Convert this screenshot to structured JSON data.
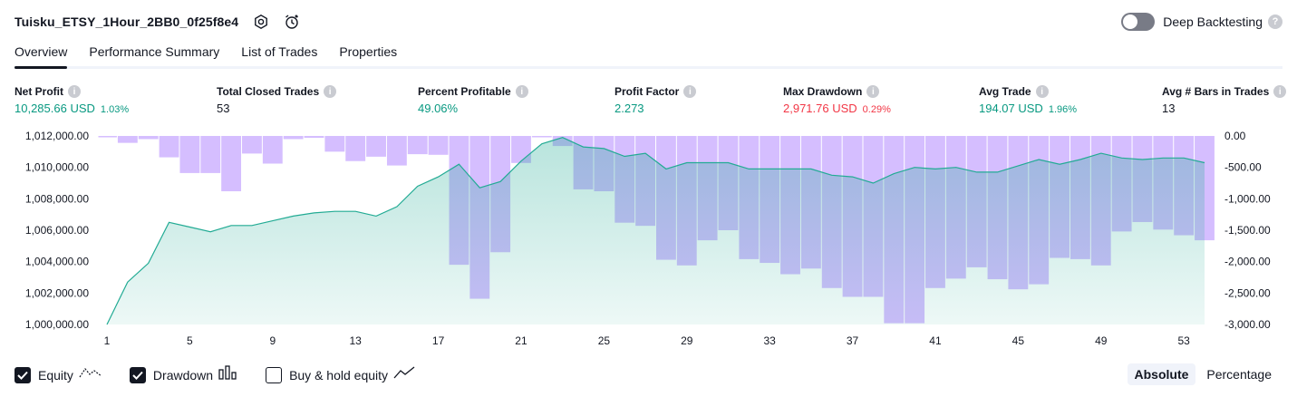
{
  "header": {
    "title": "Tuisku_ETSY_1Hour_2BB0_0f25f8e4",
    "settings_icon": "settings-icon",
    "alert_icon": "alarm-clock-icon",
    "deep_backtesting_label": "Deep Backtesting",
    "deep_backtesting_enabled": false
  },
  "tabs": [
    {
      "label": "Overview",
      "active": true
    },
    {
      "label": "Performance Summary",
      "active": false
    },
    {
      "label": "List of Trades",
      "active": false
    },
    {
      "label": "Properties",
      "active": false
    }
  ],
  "metrics": [
    {
      "label": "Net Profit",
      "value": "10,285.66 USD",
      "pct": "1.03%",
      "tone": "pos"
    },
    {
      "label": "Total Closed Trades",
      "value": "53",
      "pct": "",
      "tone": "neutral"
    },
    {
      "label": "Percent Profitable",
      "value": "49.06%",
      "pct": "",
      "tone": "pos"
    },
    {
      "label": "Profit Factor",
      "value": "2.273",
      "pct": "",
      "tone": "pos"
    },
    {
      "label": "Max Drawdown",
      "value": "2,971.76 USD",
      "pct": "0.29%",
      "tone": "neg"
    },
    {
      "label": "Avg Trade",
      "value": "194.07 USD",
      "pct": "1.96%",
      "tone": "pos"
    },
    {
      "label": "Avg # Bars in Trades",
      "value": "13",
      "pct": "",
      "tone": "neutral"
    }
  ],
  "colors": {
    "equity_line": "#22ab94",
    "equity_fill": "#22ab94",
    "drawdown_bar": "#b388ff",
    "axis_text": "#131722",
    "positive": "#089981",
    "negative": "#f23645"
  },
  "chart_data": {
    "type": "area",
    "x": [
      1,
      2,
      3,
      4,
      5,
      6,
      7,
      8,
      9,
      10,
      11,
      12,
      13,
      14,
      15,
      16,
      17,
      18,
      19,
      20,
      21,
      22,
      23,
      24,
      25,
      26,
      27,
      28,
      29,
      30,
      31,
      32,
      33,
      34,
      35,
      36,
      37,
      38,
      39,
      40,
      41,
      42,
      43,
      44,
      45,
      46,
      47,
      48,
      49,
      50,
      51,
      52,
      53,
      54
    ],
    "x_ticks": [
      1,
      5,
      9,
      13,
      17,
      21,
      25,
      29,
      33,
      37,
      41,
      45,
      49,
      53
    ],
    "series": [
      {
        "name": "Equity",
        "axis": "left",
        "values": [
          1000000,
          1002700,
          1003900,
          1006500,
          1006200,
          1005900,
          1006300,
          1006300,
          1006600,
          1006900,
          1007100,
          1007200,
          1007200,
          1006900,
          1007500,
          1008800,
          1009400,
          1010200,
          1008700,
          1009100,
          1010400,
          1011500,
          1011900,
          1011300,
          1011200,
          1010700,
          1010900,
          1009900,
          1010300,
          1010300,
          1010300,
          1009900,
          1009900,
          1009900,
          1009900,
          1009500,
          1009400,
          1009000,
          1009600,
          1010000,
          1009900,
          1010000,
          1009700,
          1009700,
          1010100,
          1010500,
          1010200,
          1010500,
          1010900,
          1010600,
          1010500,
          1010600,
          1010600,
          1010300
        ]
      },
      {
        "name": "Drawdown",
        "axis": "right",
        "values": [
          0,
          -110,
          -50,
          -340,
          -590,
          -590,
          -880,
          -280,
          -440,
          -50,
          -30,
          -250,
          -400,
          -330,
          -470,
          -290,
          -300,
          -2050,
          -2590,
          -1850,
          -430,
          0,
          -160,
          -850,
          -880,
          -1380,
          -1430,
          -1970,
          -2060,
          -1660,
          -1500,
          -1960,
          -2020,
          -2200,
          -2110,
          -2420,
          -2560,
          -2560,
          -2980,
          -2980,
          -2420,
          -2270,
          -2090,
          -2280,
          -2440,
          -2360,
          -1940,
          -1960,
          -2060,
          -1520,
          -1370,
          -1490,
          -1580,
          -1660
        ]
      }
    ],
    "y_left_ticks": [
      1000000,
      1002000,
      1004000,
      1006000,
      1008000,
      1010000,
      1012000
    ],
    "y_left_tick_labels": [
      "1,000,000.00",
      "1,002,000.00",
      "1,004,000.00",
      "1,006,000.00",
      "1,008,000.00",
      "1,010,000.00",
      "1,012,000.00"
    ],
    "y_left_range": [
      1000000,
      1012000
    ],
    "y_right_ticks": [
      0,
      -500,
      -1000,
      -1500,
      -2000,
      -2500,
      -3000
    ],
    "y_right_tick_labels": [
      "0.00",
      "-500.00",
      "-1,000.00",
      "-1,500.00",
      "-2,000.00",
      "-2,500.00",
      "-3,000.00"
    ],
    "y_right_range": [
      -3000,
      0
    ],
    "grid": false
  },
  "legend": {
    "items": [
      {
        "label": "Equity",
        "checked": true,
        "icon": "equity-line-icon"
      },
      {
        "label": "Drawdown",
        "checked": true,
        "icon": "drawdown-bars-icon"
      },
      {
        "label": "Buy & hold equity",
        "checked": false,
        "icon": "buy-hold-line-icon"
      }
    ]
  },
  "mode": {
    "absolute_label": "Absolute",
    "percentage_label": "Percentage",
    "selected": "Absolute"
  }
}
